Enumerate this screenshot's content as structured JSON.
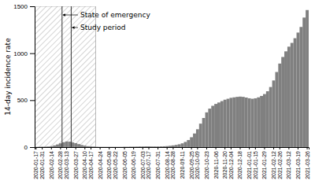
{
  "chart_data": {
    "type": "bar",
    "categories": [
      "2020-01-17",
      null,
      "2020-01-31",
      null,
      null,
      "2020-02-14",
      null,
      null,
      "2020-02-28",
      null,
      "2020-03-13",
      null,
      null,
      "2020-03-27",
      null,
      null,
      "2020-04-10",
      null,
      "2020-04-17",
      null,
      null,
      "2020-04-24",
      null,
      null,
      "2020-05-08",
      null,
      "2020-05-22",
      null,
      null,
      "2020-06-05",
      null,
      null,
      "2020-06-19",
      null,
      null,
      "2020-07-03",
      null,
      "2020-07-17",
      null,
      null,
      "2020-07-31",
      null,
      null,
      "2020-08-14",
      null,
      "2020-08-28",
      null,
      null,
      "2020-09-11",
      null,
      null,
      "2020-09-25",
      null,
      "2020-10-09",
      null,
      null,
      "2020-10-23",
      null,
      null,
      "2020-11-06",
      null,
      null,
      "2020-11-20",
      null,
      "2020-12-04",
      null,
      null,
      "2020-12-18",
      null,
      null,
      "2021-01-01",
      null,
      "2021-01-15",
      null,
      null,
      "2021-01-29",
      null,
      null,
      "2021-02-12",
      null,
      "2021-02-26",
      null,
      null,
      "2021-03-12",
      null,
      null,
      "2021-03-19",
      null,
      null,
      "2021-03-26"
    ],
    "values": [
      1,
      2,
      3,
      4,
      6,
      10,
      18,
      28,
      40,
      52,
      60,
      58,
      50,
      42,
      32,
      22,
      15,
      10,
      7,
      5,
      4,
      3,
      3,
      3,
      3,
      3,
      3,
      3,
      3,
      4,
      4,
      5,
      5,
      6,
      7,
      7,
      8,
      8,
      7,
      7,
      7,
      8,
      9,
      11,
      14,
      18,
      23,
      30,
      40,
      55,
      75,
      105,
      145,
      190,
      250,
      310,
      370,
      410,
      440,
      460,
      475,
      490,
      505,
      515,
      525,
      530,
      535,
      538,
      535,
      528,
      520,
      515,
      520,
      530,
      545,
      565,
      595,
      640,
      710,
      800,
      890,
      960,
      1020,
      1070,
      1110,
      1160,
      1220,
      1280,
      1380,
      1460
    ],
    "color": "#808080",
    "ylabel": "14-day incidence rate",
    "ylim": [
      0,
      1500
    ],
    "yticks": [
      0,
      500,
      1000,
      1500
    ],
    "annotations": [
      {
        "text": "State of emergency",
        "x": 9
      },
      {
        "text": "Study period",
        "x": 12
      }
    ],
    "spans": [
      {
        "start": 0,
        "end": 19
      }
    ]
  }
}
